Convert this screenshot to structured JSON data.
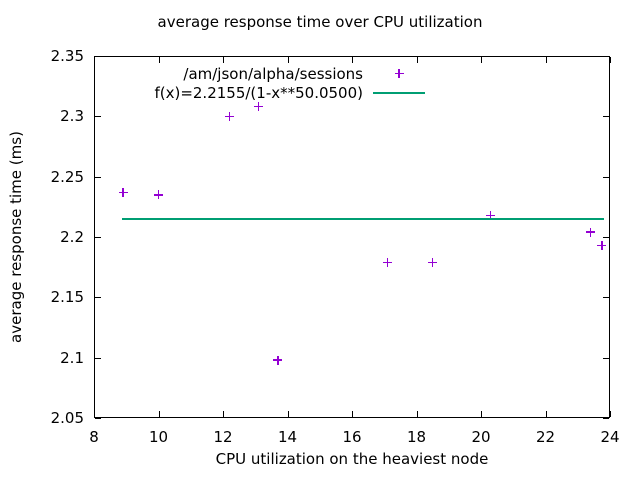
{
  "page": {
    "background": "#ffffff",
    "text_color": "#000000"
  },
  "chart_data": {
    "type": "scatter",
    "title": "average response time over CPU utilization",
    "xlabel": "CPU utilization on the heaviest node",
    "ylabel": "average response time (ms)",
    "xlim": [
      8,
      24
    ],
    "ylim": [
      2.05,
      2.35
    ],
    "xtick_labels": [
      "8",
      "10",
      "12",
      "14",
      "16",
      "18",
      "20",
      "22",
      "24"
    ],
    "xtick_values": [
      8,
      10,
      12,
      14,
      16,
      18,
      20,
      22,
      24
    ],
    "ytick_labels": [
      "2.05",
      "2.1",
      "2.15",
      "2.2",
      "2.25",
      "2.3",
      "2.35"
    ],
    "ytick_values": [
      2.05,
      2.1,
      2.15,
      2.2,
      2.25,
      2.3,
      2.35
    ],
    "grid": false,
    "legend_position": "top-center-inside",
    "series": [
      {
        "name": "/am/json/alpha/sessions",
        "type": "points",
        "marker": "plus",
        "color": "#9400D3",
        "points": [
          [
            8.9,
            2.237
          ],
          [
            10.0,
            2.235
          ],
          [
            12.2,
            2.3
          ],
          [
            13.1,
            2.308
          ],
          [
            13.7,
            2.098
          ],
          [
            17.1,
            2.179
          ],
          [
            18.5,
            2.179
          ],
          [
            20.3,
            2.218
          ],
          [
            23.4,
            2.204
          ],
          [
            23.75,
            2.193
          ]
        ]
      },
      {
        "name": "f(x)=2.2155/(1-x**50.0500)",
        "type": "line",
        "color": "#009E73",
        "line_y": 2.215,
        "x_start": 8.88,
        "x_end": 23.8
      }
    ]
  }
}
